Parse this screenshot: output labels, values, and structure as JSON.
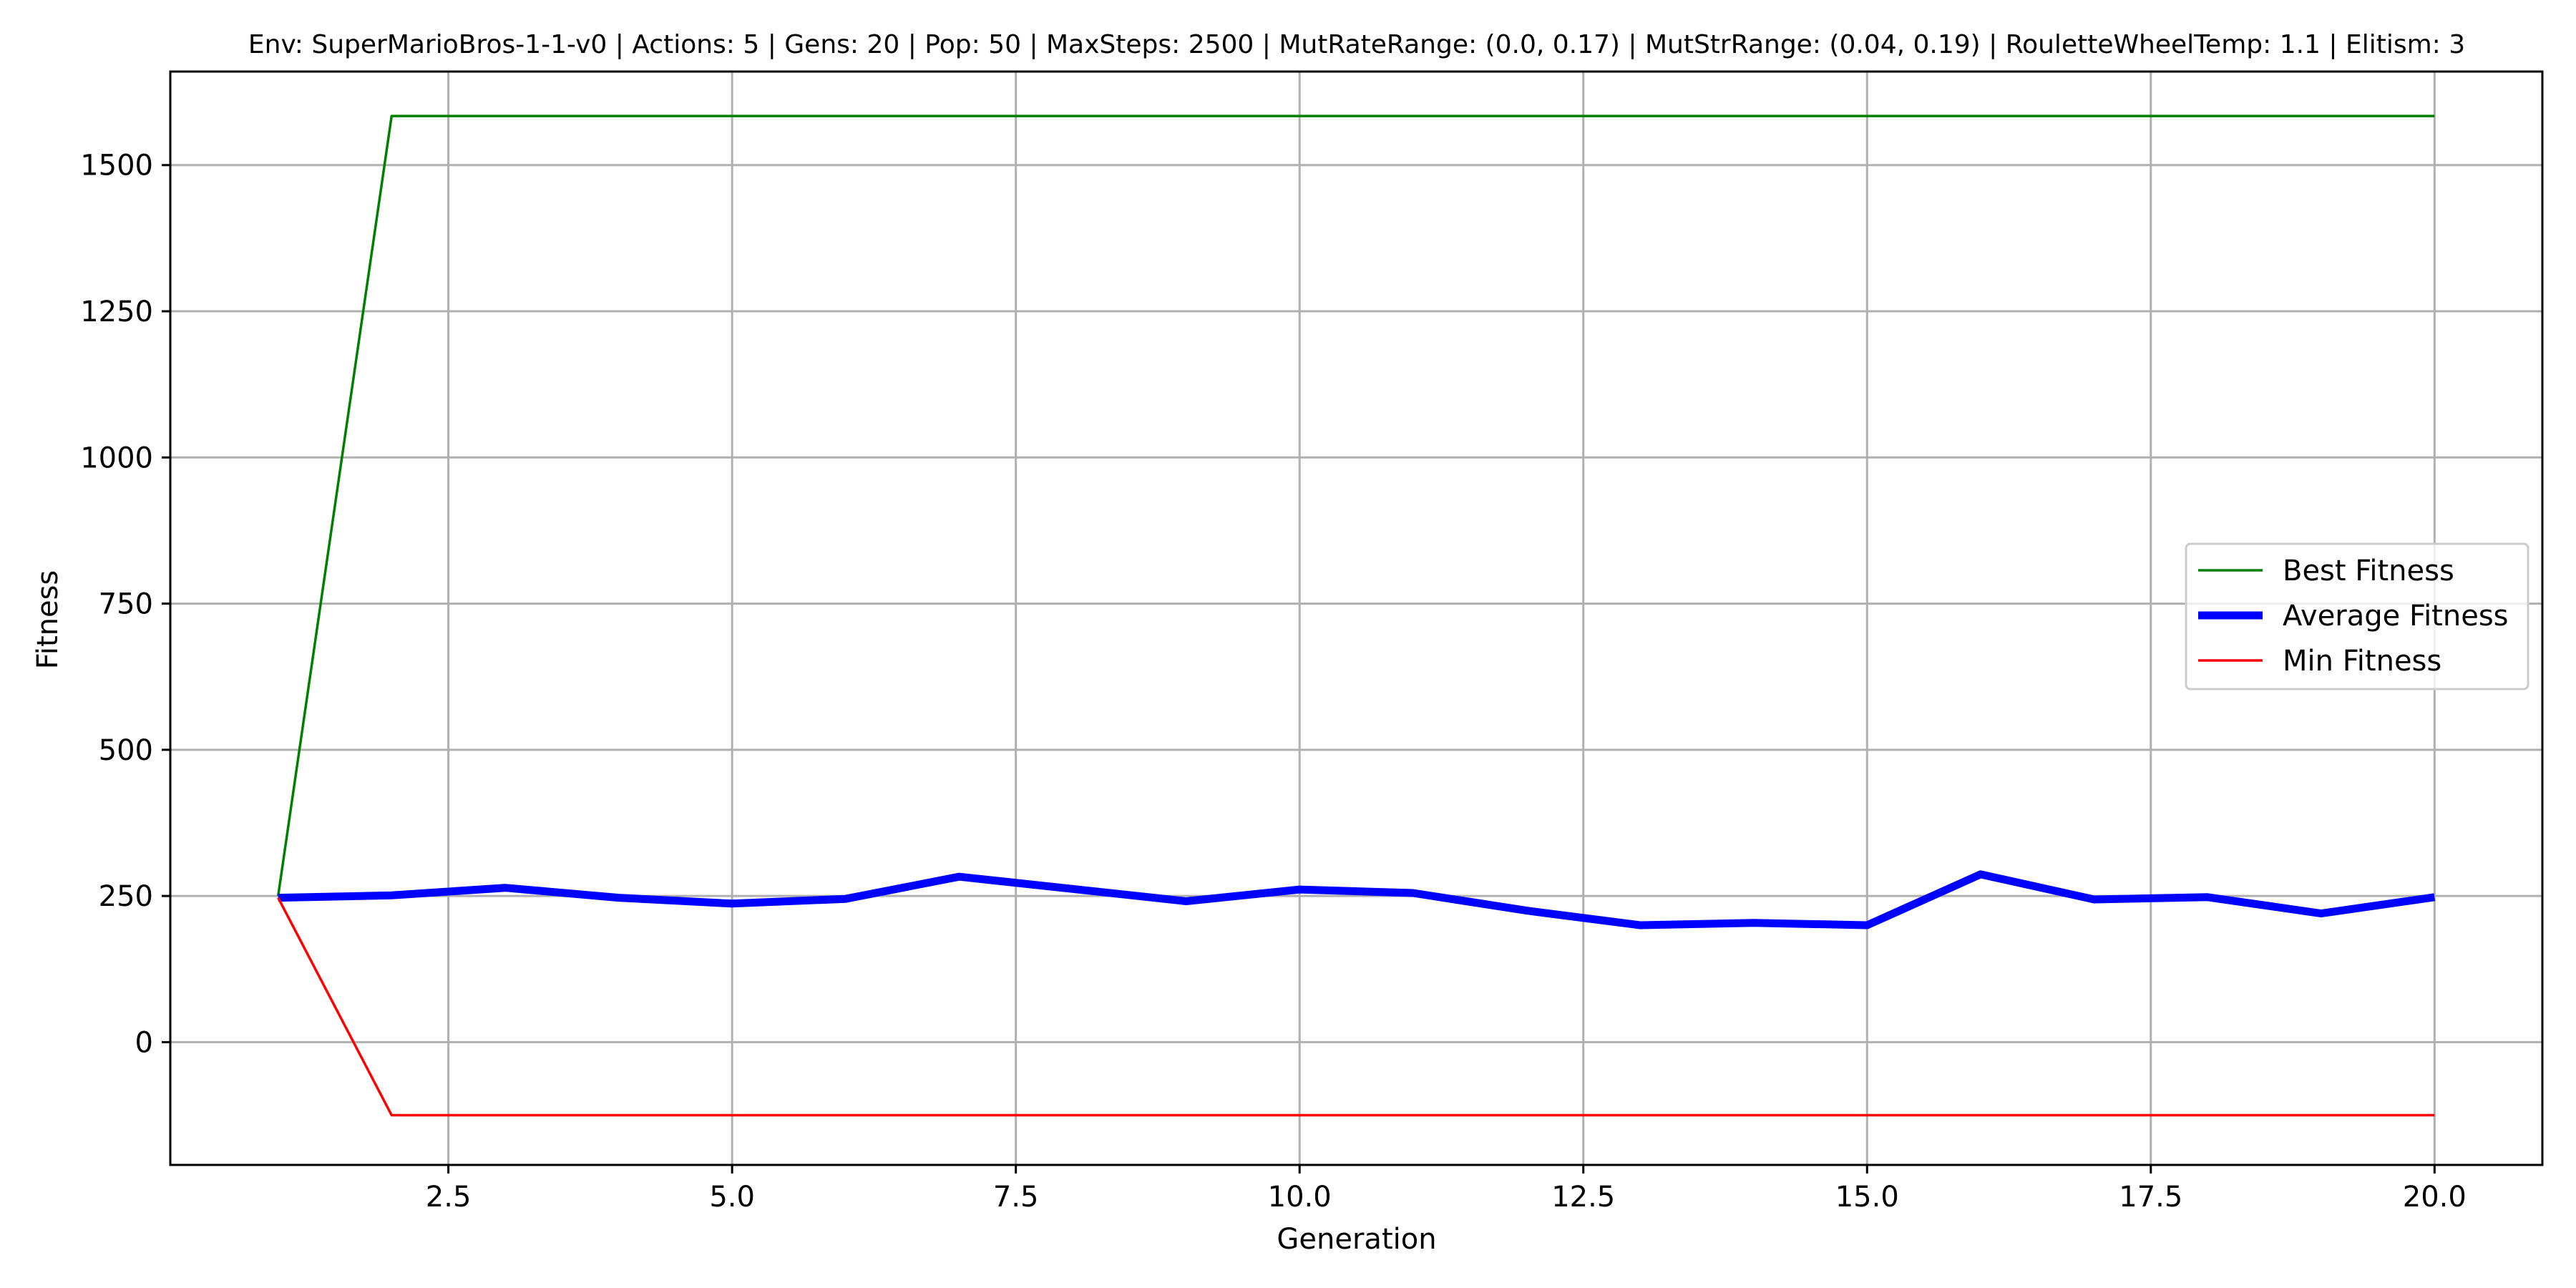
{
  "chart_data": {
    "type": "line",
    "title": "Env: SuperMarioBros-1-1-v0 | Actions: 5 | Gens: 20 | Pop: 50 | MaxSteps: 2500 | MutRateRange: (0.0, 0.17) | MutStrRange: (0.04, 0.19) | RouletteWheelTemp: 1.1 | Elitism: 3",
    "xlabel": "Generation",
    "ylabel": "Fitness",
    "x": [
      1,
      2,
      3,
      4,
      5,
      6,
      7,
      8,
      9,
      10,
      11,
      12,
      13,
      14,
      15,
      16,
      17,
      18,
      19,
      20
    ],
    "xlim": [
      0.05,
      20.95
    ],
    "ylim": [
      -210,
      1660
    ],
    "xticks": [
      2.5,
      5.0,
      7.5,
      10.0,
      12.5,
      15.0,
      17.5,
      20.0
    ],
    "xtick_labels": [
      "2.5",
      "5.0",
      "7.5",
      "10.0",
      "12.5",
      "15.0",
      "17.5",
      "20.0"
    ],
    "yticks": [
      0,
      250,
      500,
      750,
      1000,
      1250,
      1500
    ],
    "ytick_labels": [
      "0",
      "250",
      "500",
      "750",
      "1000",
      "1250",
      "1500"
    ],
    "grid": true,
    "legend_position": "center-right",
    "series": [
      {
        "name": "Best Fitness",
        "color": "#008000",
        "values": [
          250,
          1584,
          1584,
          1584,
          1584,
          1584,
          1584,
          1584,
          1584,
          1584,
          1584,
          1584,
          1584,
          1584,
          1584,
          1584,
          1584,
          1584,
          1584,
          1584
        ]
      },
      {
        "name": "Average Fitness",
        "color": "#0000ff",
        "values": [
          247,
          251,
          264,
          247,
          237,
          245,
          283,
          262,
          241,
          261,
          255,
          225,
          200,
          204,
          200,
          287,
          244,
          248,
          220,
          248
        ]
      },
      {
        "name": "Min Fitness",
        "color": "#ff0000",
        "values": [
          247,
          -125,
          -125,
          -125,
          -125,
          -125,
          -125,
          -125,
          -125,
          -125,
          -125,
          -125,
          -125,
          -125,
          -125,
          -125,
          -125,
          -125,
          -125,
          -125
        ]
      }
    ]
  }
}
